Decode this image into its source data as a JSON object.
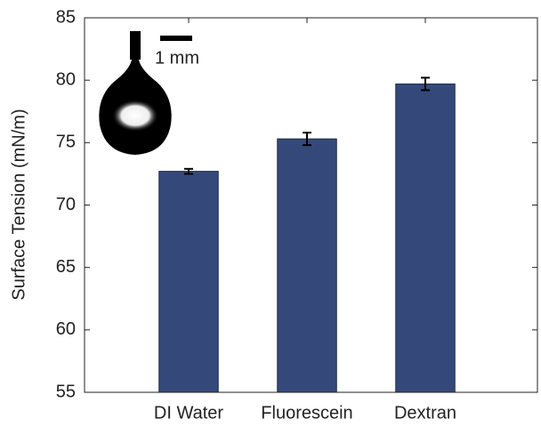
{
  "chart_data": {
    "type": "bar",
    "ylabel": "Surface Tension (mN/m)",
    "categories": [
      "DI Water",
      "Fluorescein",
      "Dextran"
    ],
    "values": [
      72.7,
      75.3,
      79.7
    ],
    "errors": [
      0.2,
      0.5,
      0.5
    ],
    "color": "#34497a",
    "ylim": [
      55,
      85
    ],
    "yticks": [
      55,
      60,
      65,
      70,
      75,
      80,
      85
    ],
    "annotations": [
      "1 mm"
    ]
  }
}
